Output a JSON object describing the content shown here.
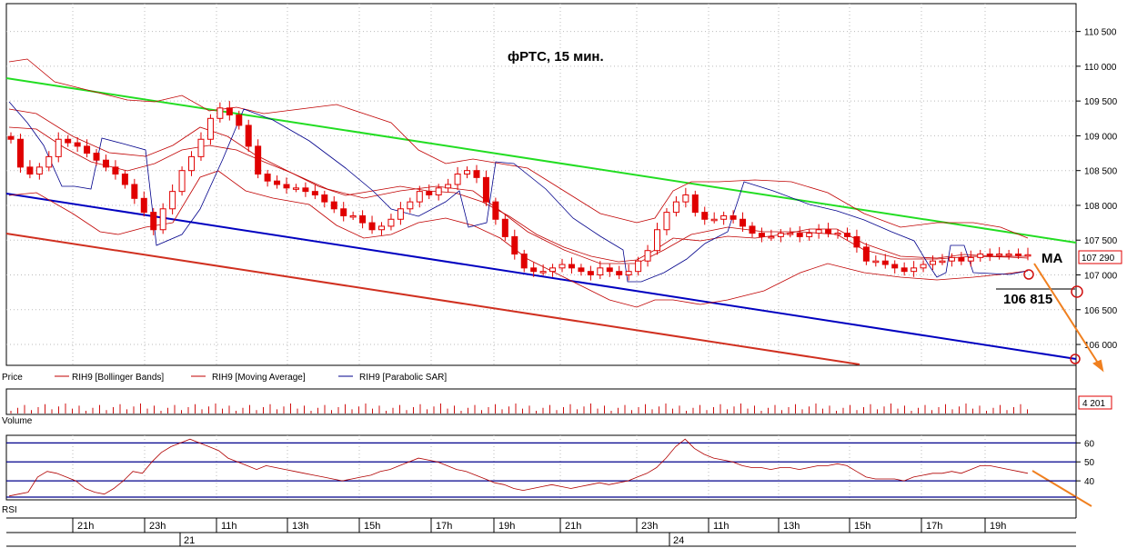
{
  "title": "фРТС, 15 мин.",
  "price_axis": {
    "ticks": [
      "110 500",
      "110 000",
      "109 500",
      "109 000",
      "108 500",
      "108 000",
      "107 500",
      "107 000",
      "106 500",
      "106 000"
    ],
    "tick_values": [
      110500,
      110000,
      109500,
      109000,
      108500,
      108000,
      107500,
      107000,
      106500,
      106000
    ],
    "last_price": "107 290"
  },
  "legend": {
    "price": "Price",
    "bollinger": "RIH9 [Bollinger Bands]",
    "moving_average": "RIH9 [Moving Average]",
    "parabolic_sar": "RIH9 [Parabolic SAR]"
  },
  "annotations": {
    "ma_label": "MA",
    "level_label": "106 815"
  },
  "volume_panel": {
    "label": "Volume",
    "last_value": "4 201"
  },
  "rsi_panel": {
    "label": "RSI",
    "ticks": [
      "60",
      "50",
      "40"
    ],
    "tick_values": [
      60,
      50,
      40
    ],
    "ylim": [
      30,
      64
    ]
  },
  "time_axis": {
    "labels": [
      "21h",
      "23h",
      "11h",
      "13h",
      "15h",
      "17h",
      "19h",
      "21h",
      "23h",
      "11h",
      "13h",
      "15h",
      "17h",
      "19h"
    ],
    "dates": [
      "21",
      "24"
    ]
  },
  "colors": {
    "candle": "#e00000",
    "bollinger": "#c00000",
    "moving_average": "#c00000",
    "sar": "#00008b",
    "green_trend": "#22dd22",
    "blue_trend": "#0000c0",
    "red_trend": "#d03020",
    "arrow": "#f08020",
    "rsi_line": "#b00000",
    "rsi_levels": "#00008b",
    "grid": "#bbbbbb"
  },
  "chart_data": {
    "type": "candlestick",
    "ylim": [
      105700,
      110900
    ],
    "close": [
      108950,
      108550,
      108450,
      108550,
      108700,
      108950,
      108900,
      108850,
      108750,
      108650,
      108550,
      108450,
      108300,
      108100,
      107900,
      107650,
      107950,
      108200,
      108500,
      108700,
      108950,
      109250,
      109400,
      109300,
      109150,
      108850,
      108450,
      108350,
      108300,
      108250,
      108250,
      108200,
      108150,
      108050,
      107950,
      107850,
      107850,
      107750,
      107650,
      107700,
      107800,
      107950,
      108050,
      108200,
      108150,
      108250,
      108300,
      108450,
      108500,
      108400,
      108050,
      107800,
      107550,
      107300,
      107100,
      107050,
      107050,
      107100,
      107150,
      107100,
      107050,
      107000,
      107100,
      107050,
      107000,
      107050,
      107200,
      107350,
      107650,
      107900,
      108050,
      108150,
      107900,
      107800,
      107800,
      107850,
      107800,
      107700,
      107600,
      107550,
      107550,
      107600,
      107600,
      107550,
      107600,
      107650,
      107600,
      107600,
      107550,
      107400,
      107200,
      107200,
      107150,
      107100,
      107050,
      107100,
      107150,
      107200,
      107200,
      107250,
      107200,
      107250,
      107300,
      107280,
      107300,
      107300,
      107290,
      107290
    ],
    "rsi": [
      32,
      33,
      34,
      42,
      45,
      44,
      42,
      40,
      36,
      34,
      33,
      36,
      40,
      45,
      44,
      50,
      55,
      58,
      60,
      62,
      60,
      58,
      56,
      52,
      50,
      48,
      46,
      48,
      47,
      46,
      45,
      44,
      43,
      42,
      41,
      40,
      41,
      42,
      43,
      45,
      46,
      48,
      50,
      52,
      51,
      50,
      48,
      46,
      45,
      43,
      41,
      39,
      38,
      36,
      35,
      36,
      37,
      38,
      37,
      36,
      37,
      38,
      39,
      38,
      39,
      40,
      42,
      44,
      47,
      52,
      58,
      62,
      57,
      54,
      52,
      51,
      50,
      48,
      47,
      47,
      46,
      47,
      47,
      46,
      47,
      48,
      48,
      49,
      48,
      45,
      42,
      41,
      41,
      41,
      40,
      42,
      43,
      44,
      44,
      45,
      44,
      46,
      48,
      48,
      47,
      46,
      45,
      44
    ]
  }
}
